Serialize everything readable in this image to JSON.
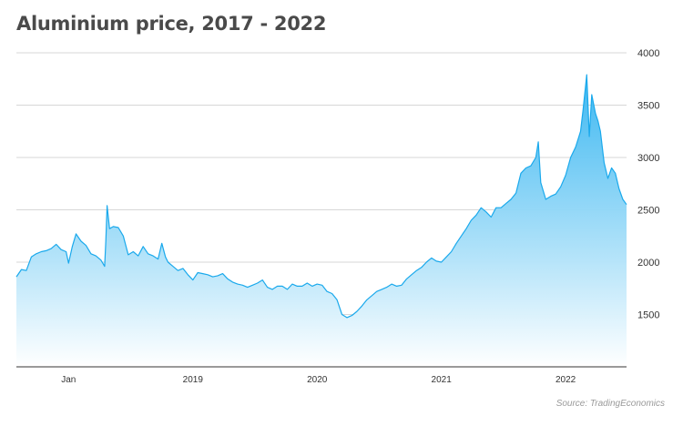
{
  "chart_data": {
    "type": "area",
    "title": "Aluminium price, 2017 - 2022",
    "source": "Source: TradingEconomics",
    "xlabel": "",
    "ylabel": "",
    "ylim": [
      1000,
      4000
    ],
    "xlim": [
      2017.58,
      2022.49
    ],
    "yticks": [
      1500,
      2000,
      2500,
      3000,
      3500,
      4000
    ],
    "ytick_labels": [
      "1500",
      "2000",
      "2500",
      "3000",
      "3500",
      "4000"
    ],
    "xticks": [
      {
        "x": 2018.0,
        "label": "Jan"
      },
      {
        "x": 2019.0,
        "label": "2019"
      },
      {
        "x": 2020.0,
        "label": "2020"
      },
      {
        "x": 2021.0,
        "label": "2021"
      },
      {
        "x": 2022.0,
        "label": "2022"
      }
    ],
    "grid": true,
    "legend": "none",
    "colors": {
      "line": "#1aa9ec",
      "fill_top": "#33b4f0",
      "fill_bottom": "#ffffff",
      "grid": "#d7d7d7",
      "title": "#4a4a4a"
    },
    "series": [
      {
        "x": [
          2017.58,
          2017.62,
          2017.66,
          2017.7,
          2017.74,
          2017.78,
          2017.82,
          2017.86,
          2017.9,
          2017.94,
          2017.98,
          2018.0,
          2018.03,
          2018.06,
          2018.1,
          2018.14,
          2018.18,
          2018.22,
          2018.26,
          2018.29,
          2018.3,
          2018.31,
          2018.33,
          2018.36,
          2018.4,
          2018.44,
          2018.48,
          2018.52,
          2018.56,
          2018.6,
          2018.64,
          2018.68,
          2018.72,
          2018.75,
          2018.78,
          2018.8,
          2018.84,
          2018.88,
          2018.92,
          2018.96,
          2019.0,
          2019.04,
          2019.08,
          2019.12,
          2019.16,
          2019.2,
          2019.24,
          2019.28,
          2019.32,
          2019.36,
          2019.4,
          2019.44,
          2019.48,
          2019.52,
          2019.56,
          2019.6,
          2019.64,
          2019.68,
          2019.72,
          2019.76,
          2019.8,
          2019.84,
          2019.88,
          2019.92,
          2019.96,
          2020.0,
          2020.04,
          2020.08,
          2020.12,
          2020.16,
          2020.2,
          2020.24,
          2020.28,
          2020.32,
          2020.36,
          2020.4,
          2020.44,
          2020.48,
          2020.52,
          2020.56,
          2020.6,
          2020.64,
          2020.68,
          2020.72,
          2020.76,
          2020.8,
          2020.84,
          2020.88,
          2020.92,
          2020.96,
          2021.0,
          2021.04,
          2021.08,
          2021.12,
          2021.16,
          2021.2,
          2021.24,
          2021.28,
          2021.32,
          2021.36,
          2021.4,
          2021.44,
          2021.48,
          2021.52,
          2021.56,
          2021.6,
          2021.64,
          2021.68,
          2021.72,
          2021.76,
          2021.78,
          2021.8,
          2021.84,
          2021.88,
          2021.92,
          2021.96,
          2022.0,
          2022.04,
          2022.08,
          2022.12,
          2022.14,
          2022.17,
          2022.19,
          2022.21,
          2022.24,
          2022.26,
          2022.28,
          2022.31,
          2022.34,
          2022.37,
          2022.4,
          2022.43,
          2022.46,
          2022.49
        ],
        "values": [
          1860,
          1930,
          1920,
          2050,
          2080,
          2100,
          2110,
          2130,
          2170,
          2120,
          2100,
          1990,
          2150,
          2270,
          2200,
          2160,
          2080,
          2060,
          2020,
          1960,
          2200,
          2540,
          2320,
          2340,
          2330,
          2250,
          2070,
          2100,
          2060,
          2150,
          2080,
          2060,
          2030,
          2180,
          2050,
          2000,
          1960,
          1920,
          1940,
          1880,
          1830,
          1900,
          1890,
          1880,
          1860,
          1870,
          1890,
          1840,
          1810,
          1790,
          1780,
          1760,
          1780,
          1800,
          1830,
          1760,
          1740,
          1770,
          1770,
          1740,
          1790,
          1770,
          1770,
          1800,
          1770,
          1790,
          1780,
          1720,
          1700,
          1640,
          1500,
          1470,
          1490,
          1530,
          1580,
          1640,
          1680,
          1720,
          1740,
          1760,
          1790,
          1770,
          1780,
          1840,
          1880,
          1920,
          1950,
          2000,
          2040,
          2010,
          2000,
          2050,
          2100,
          2180,
          2250,
          2320,
          2400,
          2450,
          2520,
          2480,
          2430,
          2520,
          2520,
          2560,
          2600,
          2660,
          2850,
          2900,
          2920,
          3000,
          3150,
          2760,
          2600,
          2630,
          2650,
          2720,
          2830,
          3000,
          3100,
          3250,
          3450,
          3790,
          3200,
          3600,
          3420,
          3350,
          3250,
          2950,
          2800,
          2900,
          2850,
          2700,
          2600,
          2550
        ]
      }
    ]
  }
}
